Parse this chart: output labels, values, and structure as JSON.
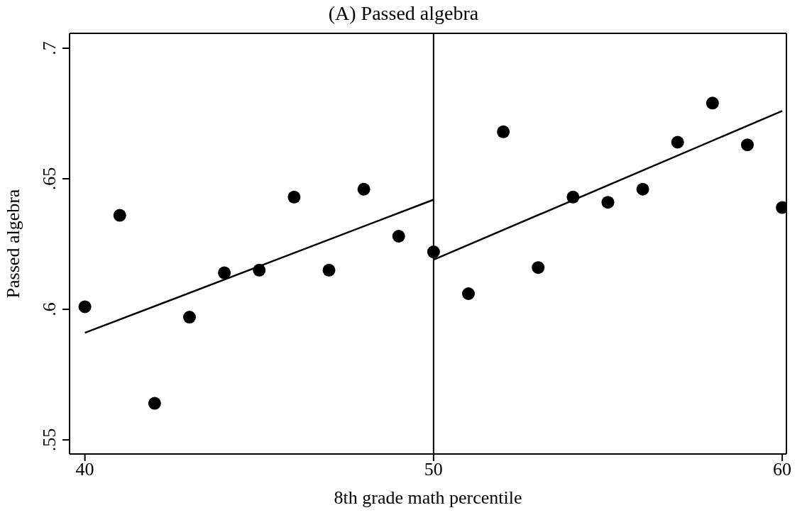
{
  "chart_data": {
    "type": "scatter",
    "title": "(A) Passed algebra",
    "xlabel": "8th grade math percentile",
    "ylabel": "Passed algebra",
    "x": [
      40,
      41,
      42,
      43,
      44,
      45,
      46,
      47,
      48,
      49,
      50,
      51,
      52,
      53,
      54,
      55,
      56,
      57,
      58,
      59,
      60
    ],
    "series": [
      {
        "marker": "circle",
        "color": "#000000",
        "values": [
          0.601,
          0.636,
          0.564,
          0.597,
          0.614,
          0.615,
          0.643,
          0.615,
          0.646,
          0.628,
          0.622,
          0.606,
          0.668,
          0.616,
          0.643,
          0.641,
          0.646,
          0.664,
          0.679,
          0.663,
          0.639
        ]
      },
      {
        "type": "line",
        "marker": "none",
        "color": "#000000",
        "x": [
          40,
          50
        ],
        "values": [
          0.591,
          0.642
        ]
      },
      {
        "type": "line",
        "marker": "none",
        "color": "#000000",
        "x": [
          50,
          60
        ],
        "values": [
          0.619,
          0.676
        ]
      }
    ],
    "xlim": [
      39.56,
      60.12
    ],
    "ylim": [
      0.5446,
      0.7057
    ],
    "xticks": [
      40,
      50,
      60
    ],
    "yticks": [
      {
        "value": 0.55,
        "label": ".55"
      },
      {
        "value": 0.6,
        "label": ".6"
      },
      {
        "value": 0.65,
        "label": ".65"
      },
      {
        "value": 0.7,
        "label": ".7"
      }
    ],
    "ref_lines": [
      {
        "axis": "x",
        "value": 50,
        "color": "#000000"
      }
    ],
    "line_style": "solid"
  }
}
